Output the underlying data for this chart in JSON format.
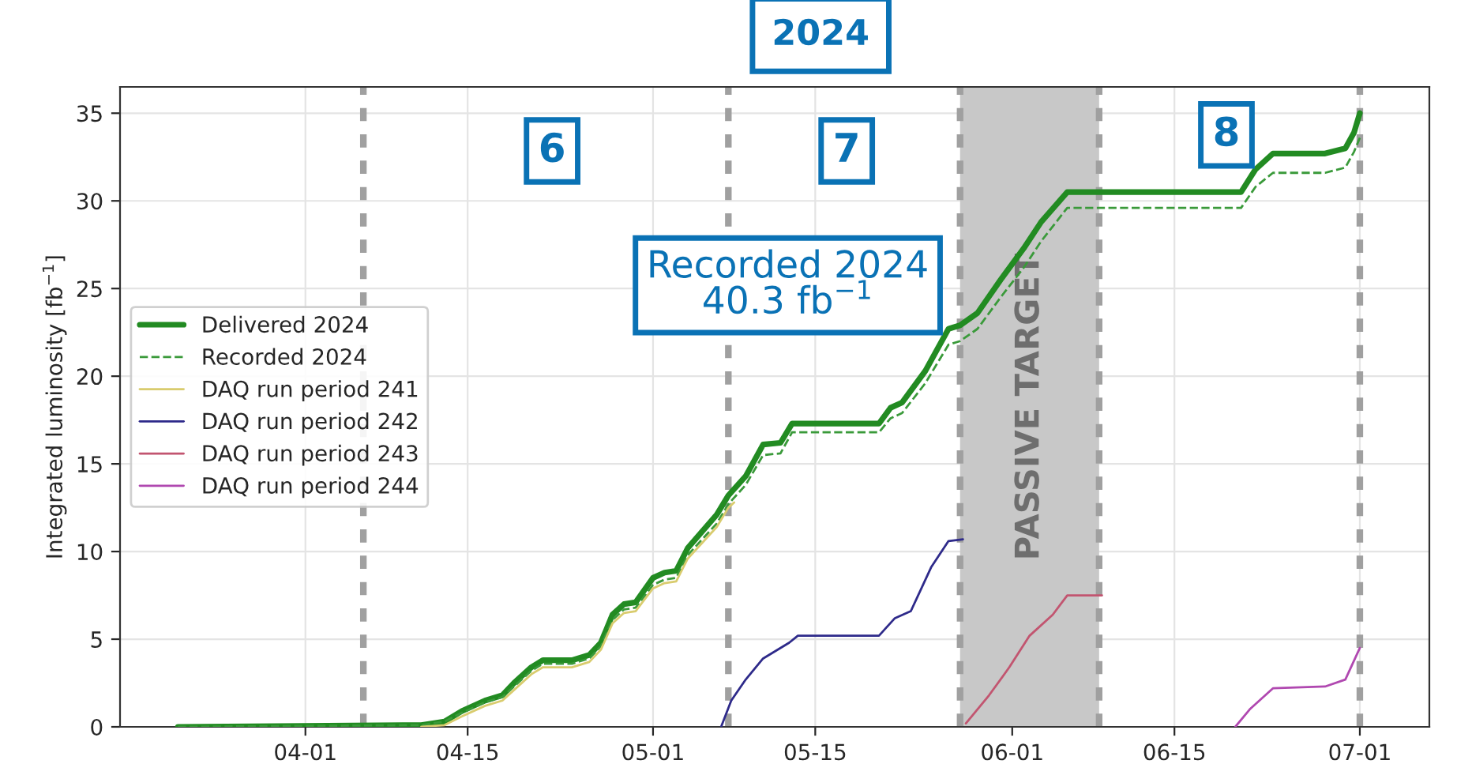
{
  "chart_data": {
    "type": "line",
    "title": "2024",
    "ylabel": "Integrated luminosity [fb$^{−1}$]",
    "xlim": [
      "2024-03-16",
      "2024-07-07"
    ],
    "xticks": [
      {
        "value": "2024-04-01",
        "label": "04-01"
      },
      {
        "value": "2024-04-15",
        "label": "04-15"
      },
      {
        "value": "2024-05-01",
        "label": "05-01"
      },
      {
        "value": "2024-05-15",
        "label": "05-15"
      },
      {
        "value": "2024-06-01",
        "label": "06-01"
      },
      {
        "value": "2024-06-15",
        "label": "06-15"
      },
      {
        "value": "2024-07-01",
        "label": "07-01"
      }
    ],
    "ylim": [
      0,
      36.5
    ],
    "yticks": [
      0,
      5,
      10,
      15,
      20,
      25,
      30,
      35
    ],
    "grid": true,
    "legend": "left",
    "marker": "none",
    "series": [
      {
        "name": "Delivered 2024",
        "color": "#228b22",
        "line_style": "solid",
        "x": [
          "2024-03-21",
          "2024-04-11",
          "2024-04-13",
          "2024-04-14T12:00",
          "2024-04-16T12:00",
          "2024-04-18",
          "2024-04-19",
          "2024-04-20T12:00",
          "2024-04-21T12:00",
          "2024-04-24",
          "2024-04-25T12:00",
          "2024-04-26T12:00",
          "2024-04-27T12:00",
          "2024-04-28T12:00",
          "2024-04-29T12:00",
          "2024-05-01",
          "2024-05-02",
          "2024-05-03",
          "2024-05-04",
          "2024-05-06T12:00",
          "2024-05-07T12:00",
          "2024-05-09",
          "2024-05-10T12:00",
          "2024-05-12",
          "2024-05-13",
          "2024-05-20T12:00",
          "2024-05-21T12:00",
          "2024-05-22T12:00",
          "2024-05-24T12:00",
          "2024-05-26T12:00",
          "2024-05-27T12:00",
          "2024-05-29",
          "2024-05-31",
          "2024-06-02",
          "2024-06-03T12:00",
          "2024-06-05T18:00",
          "2024-06-20T18:00",
          "2024-06-22",
          "2024-06-23T12:00",
          "2024-06-28",
          "2024-06-29T18:00",
          "2024-06-30T12:00",
          "2024-07-01"
        ],
        "values": [
          0,
          0.1,
          0.3,
          0.9,
          1.5,
          1.8,
          2.5,
          3.4,
          3.8,
          3.8,
          4.1,
          4.8,
          6.4,
          7.0,
          7.1,
          8.5,
          8.8,
          8.9,
          10.2,
          12.1,
          13.2,
          14.3,
          16.1,
          16.2,
          17.3,
          17.3,
          18.2,
          18.5,
          20.3,
          22.7,
          22.9,
          23.6,
          25.5,
          27.3,
          28.8,
          30.5,
          30.5,
          31.8,
          32.7,
          32.7,
          33.0,
          33.9,
          35.0
        ]
      },
      {
        "name": "Recorded 2024",
        "color": "#3a9a3a",
        "line_style": "dashed",
        "x": [
          "2024-03-21",
          "2024-04-11",
          "2024-04-13",
          "2024-04-14T12:00",
          "2024-04-16T12:00",
          "2024-04-18",
          "2024-04-19",
          "2024-04-20T12:00",
          "2024-04-21T12:00",
          "2024-04-24",
          "2024-04-25T12:00",
          "2024-04-26T12:00",
          "2024-04-27T12:00",
          "2024-04-28T12:00",
          "2024-04-29T12:00",
          "2024-05-01",
          "2024-05-02",
          "2024-05-03",
          "2024-05-04",
          "2024-05-06T12:00",
          "2024-05-07T12:00",
          "2024-05-09",
          "2024-05-10T12:00",
          "2024-05-12",
          "2024-05-13",
          "2024-05-20T12:00",
          "2024-05-21T12:00",
          "2024-05-22T12:00",
          "2024-05-24T12:00",
          "2024-05-26T12:00",
          "2024-05-27T12:00",
          "2024-05-29",
          "2024-05-31",
          "2024-06-02",
          "2024-06-03T12:00",
          "2024-06-05T18:00",
          "2024-06-20T18:00",
          "2024-06-22",
          "2024-06-23T12:00",
          "2024-06-28",
          "2024-06-29T18:00",
          "2024-06-30T12:00",
          "2024-07-01"
        ],
        "values": [
          0,
          0.1,
          0.3,
          0.8,
          1.4,
          1.7,
          2.3,
          3.2,
          3.6,
          3.6,
          3.9,
          4.6,
          6.1,
          6.7,
          6.8,
          8.1,
          8.4,
          8.5,
          9.8,
          11.6,
          12.7,
          13.8,
          15.5,
          15.6,
          16.8,
          16.8,
          17.6,
          17.9,
          19.6,
          21.8,
          22.0,
          22.7,
          24.5,
          26.2,
          27.7,
          29.6,
          29.6,
          30.8,
          31.6,
          31.6,
          31.9,
          32.8,
          33.6
        ]
      },
      {
        "name": "DAQ run period 241",
        "color": "#d9cc6e",
        "line_style": "solid",
        "x": [
          "2024-04-11",
          "2024-04-13",
          "2024-04-14T12:00",
          "2024-04-16T12:00",
          "2024-04-18",
          "2024-04-19",
          "2024-04-20T12:00",
          "2024-04-21T12:00",
          "2024-04-24",
          "2024-04-25T12:00",
          "2024-04-26T12:00",
          "2024-04-27T12:00",
          "2024-04-28T12:00",
          "2024-04-29T12:00",
          "2024-05-01",
          "2024-05-02",
          "2024-05-03",
          "2024-05-04",
          "2024-05-06T12:00",
          "2024-05-07T12:00",
          "2024-05-08"
        ],
        "values": [
          0,
          0.1,
          0.6,
          1.2,
          1.5,
          2.1,
          3.0,
          3.4,
          3.4,
          3.7,
          4.4,
          5.9,
          6.5,
          6.6,
          7.9,
          8.2,
          8.3,
          9.6,
          11.4,
          12.5,
          12.8
        ]
      },
      {
        "name": "DAQ run period 242",
        "color": "#2e2a8a",
        "line_style": "solid",
        "x": [
          "2024-05-06T21:00",
          "2024-05-07T18:00",
          "2024-05-09",
          "2024-05-10T12:00",
          "2024-05-12T18:00",
          "2024-05-13T12:00",
          "2024-05-20T12:00",
          "2024-05-21T21:00",
          "2024-05-23T06:00",
          "2024-05-25",
          "2024-05-26T12:00",
          "2024-05-27T18:00"
        ],
        "values": [
          0,
          1.5,
          2.7,
          3.9,
          4.8,
          5.2,
          5.2,
          6.2,
          6.6,
          9.1,
          10.6,
          10.7
        ]
      },
      {
        "name": "DAQ run period 243",
        "color": "#c25570",
        "line_style": "solid",
        "x": [
          "2024-05-28",
          "2024-05-30",
          "2024-05-31T18:00",
          "2024-06-02T12:00",
          "2024-06-04T12:00",
          "2024-06-05T18:00",
          "2024-06-08T18:00"
        ],
        "values": [
          0.2,
          1.8,
          3.4,
          5.2,
          6.4,
          7.5,
          7.5
        ]
      },
      {
        "name": "DAQ run period 244",
        "color": "#b048b0",
        "line_style": "solid",
        "x": [
          "2024-06-20T06:00",
          "2024-06-21T12:00",
          "2024-06-23T12:00",
          "2024-06-28",
          "2024-06-29T18:00",
          "2024-07-01"
        ],
        "values": [
          0,
          1.0,
          2.2,
          2.3,
          2.7,
          4.5
        ]
      }
    ],
    "ref_lines": [
      {
        "axis": "x",
        "value": "2024-04-06",
        "color": "#a0a0a0",
        "line_style": "dashed"
      },
      {
        "axis": "x",
        "value": "2024-05-07T12:00",
        "color": "#a0a0a0",
        "line_style": "dashed"
      },
      {
        "axis": "x",
        "value": "2024-05-27T12:00",
        "color": "#a0a0a0",
        "line_style": "dashed"
      },
      {
        "axis": "x",
        "value": "2024-06-08T12:00",
        "color": "#a0a0a0",
        "line_style": "dashed"
      },
      {
        "axis": "x",
        "value": "2024-07-01",
        "color": "#a0a0a0",
        "line_style": "dashed"
      }
    ],
    "bands": [
      {
        "axis": "x",
        "from": "2024-05-27T12:00",
        "to": "2024-06-08T12:00",
        "label": "PASSIVE TARGET",
        "color": "#c8c8c8"
      }
    ],
    "annotations": [
      "6",
      "7",
      "8",
      "Recorded 2024\n40.3 fb$^{−1}$"
    ]
  }
}
